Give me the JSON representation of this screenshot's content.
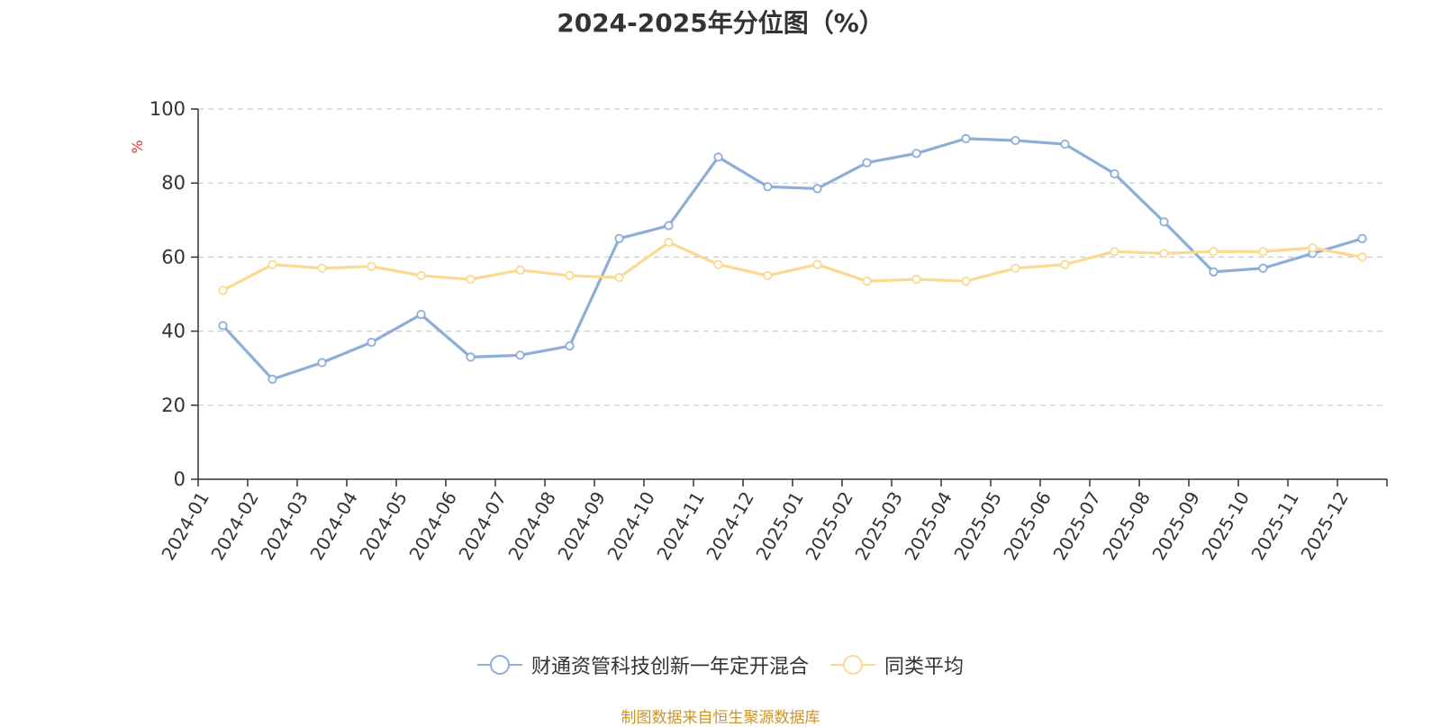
{
  "chart_data": {
    "type": "line",
    "title": "2024-2025年分位图（%）",
    "ylabel": "%",
    "xlabel": "",
    "ylim": [
      0,
      100
    ],
    "yticks": [
      0,
      20,
      40,
      60,
      80,
      100
    ],
    "grid": true,
    "legend_position": "bottom",
    "categories": [
      "2024-01",
      "2024-02",
      "2024-03",
      "2024-04",
      "2024-05",
      "2024-06",
      "2024-07",
      "2024-08",
      "2024-09",
      "2024-10",
      "2024-11",
      "2024-12",
      "2025-01",
      "2025-02",
      "2025-03",
      "2025-04",
      "2025-05",
      "2025-06",
      "2025-07",
      "2025-08",
      "2025-09",
      "2025-10",
      "2025-11",
      "2025-12"
    ],
    "series": [
      {
        "name": "财通资管科技创新一年定开混合",
        "color": "#8eadd9",
        "values": [
          41.5,
          27,
          31.5,
          37,
          44.5,
          33,
          33.5,
          36,
          65,
          68.5,
          87,
          79,
          78.5,
          85.5,
          88,
          92,
          91.5,
          90.5,
          82.5,
          69.5,
          56,
          57,
          61,
          65
        ]
      },
      {
        "name": "同类平均",
        "color": "#fbd990",
        "values": [
          51,
          58,
          57,
          57.5,
          55,
          54,
          56.5,
          55,
          54.5,
          64,
          58,
          55,
          58,
          53.5,
          54,
          53.5,
          57,
          58,
          61.5,
          61,
          61.5,
          61.5,
          62.5,
          60
        ]
      }
    ]
  },
  "source": {
    "text": "制图数据来自恒生聚源数据库",
    "color": "#c89528"
  }
}
